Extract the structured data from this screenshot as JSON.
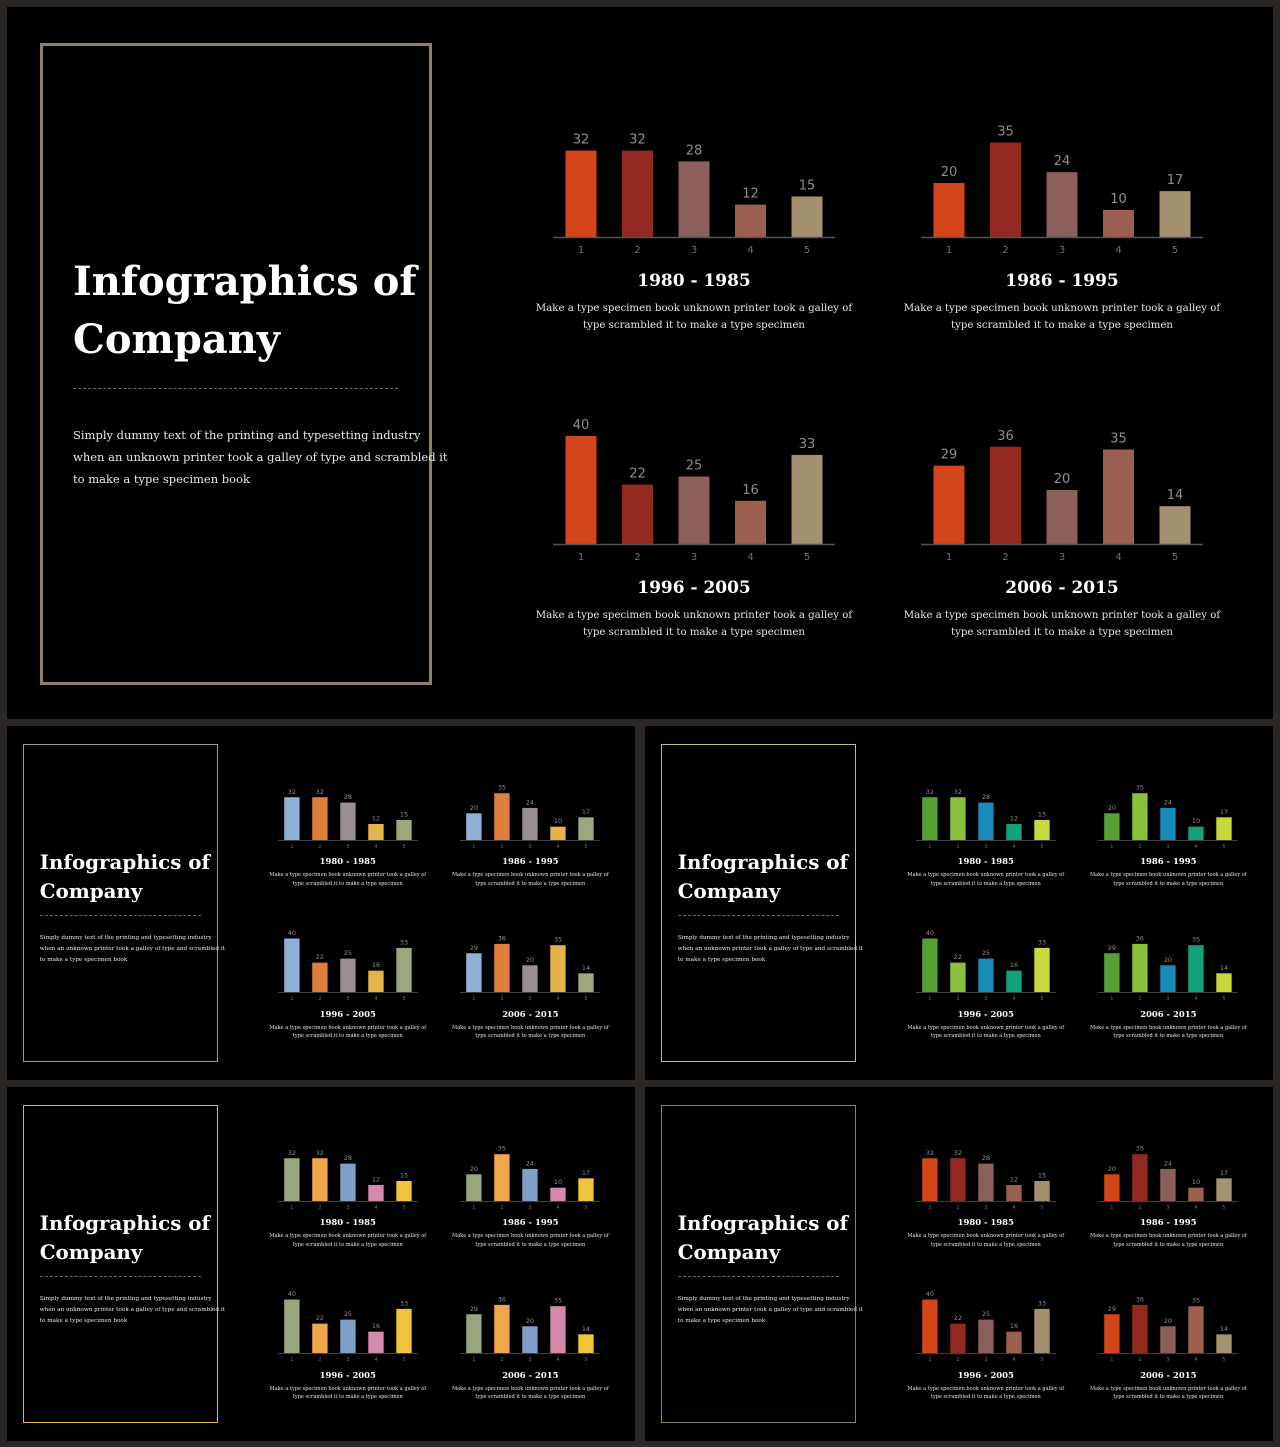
{
  "title_lines": [
    "Infographics of",
    "Company"
  ],
  "description_lines": [
    "Simply dummy  text of the printing and typesetting industry",
    "when an unknown printer took a galley of type and scrambled it",
    "to make a type specimen  book"
  ],
  "chart_data": [
    {
      "type": "bar",
      "title": "1980 - 1985",
      "categories": [
        "1",
        "2",
        "3",
        "4",
        "5"
      ],
      "values": [
        32,
        32,
        28,
        12,
        15
      ],
      "ylim": [
        0,
        40
      ],
      "description_lines": [
        "Make a type specimen book unknown printer took a galley of",
        "type  scrambled it to make a type specimen"
      ]
    },
    {
      "type": "bar",
      "title": "1986 - 1995",
      "categories": [
        "1",
        "2",
        "3",
        "4",
        "5"
      ],
      "values": [
        20,
        35,
        24,
        10,
        17
      ],
      "ylim": [
        0,
        40
      ],
      "description_lines": [
        "Make a type specimen book unknown printer took a galley of",
        "type  scrambled it to make a type specimen"
      ]
    },
    {
      "type": "bar",
      "title": "1996 - 2005",
      "categories": [
        "1",
        "2",
        "3",
        "4",
        "5"
      ],
      "values": [
        40,
        22,
        25,
        16,
        33
      ],
      "ylim": [
        0,
        40
      ],
      "description_lines": [
        "Make a type specimen book unknown printer took a galley of",
        "type  scrambled it to make a type specimen"
      ]
    },
    {
      "type": "bar",
      "title": "2006 - 2015",
      "categories": [
        "1",
        "2",
        "3",
        "4",
        "5"
      ],
      "values": [
        29,
        36,
        20,
        35,
        14
      ],
      "ylim": [
        0,
        40
      ],
      "description_lines": [
        "Make a type specimen book unknown printer took a galley of",
        "type  scrambled it to make a type specimen"
      ]
    }
  ],
  "themes": [
    {
      "name": "brown",
      "frame": "#8c7f6b",
      "bar_colors": [
        [
          "#d24619",
          "#922a22",
          "#8a5f5c",
          "#9b5f4d",
          "#a3906f"
        ],
        [
          "#d24619",
          "#922a22",
          "#8a5f5c",
          "#9b5f4d",
          "#a3906f"
        ],
        [
          "#d24619",
          "#922a22",
          "#8a5f5c",
          "#9b5f4d",
          "#a3906f"
        ],
        [
          "#d24619",
          "#922a22",
          "#8a5f5c",
          "#9b5f4d",
          "#a3906f"
        ]
      ]
    },
    {
      "name": "blue-orange",
      "frame": "#8e9aa3",
      "bar_colors": [
        [
          "#8fb1d6",
          "#e07f3c",
          "#9a9090",
          "#e4b44a",
          "#9ba77c"
        ],
        [
          "#8fb1d6",
          "#e07f3c",
          "#9a9090",
          "#e4b44a",
          "#9ba77c"
        ],
        [
          "#8fb1d6",
          "#e07f3c",
          "#9a9090",
          "#e4b44a",
          "#9ba77c"
        ],
        [
          "#8fb1d6",
          "#e07f3c",
          "#9a9090",
          "#e4b44a",
          "#9ba77c"
        ]
      ]
    },
    {
      "name": "green",
      "frame": "#bfc06a",
      "bar_colors": [
        [
          "#58a033",
          "#8cc03a",
          "#198bb8",
          "#12a27a",
          "#c6d83c"
        ],
        [
          "#58a033",
          "#8cc03a",
          "#198bb8",
          "#12a27a",
          "#c6d83c"
        ],
        [
          "#58a033",
          "#8cc03a",
          "#198bb8",
          "#12a27a",
          "#c6d83c"
        ],
        [
          "#58a033",
          "#8cc03a",
          "#198bb8",
          "#12a27a",
          "#c6d83c"
        ]
      ]
    },
    {
      "name": "pastel",
      "frame": "#e3b54c",
      "bar_colors": [
        [
          "#97a67c",
          "#f0a64a",
          "#7f9ec8",
          "#d58aac",
          "#f0c43a"
        ],
        [
          "#97a67c",
          "#f0a64a",
          "#7f9ec8",
          "#d58aac",
          "#f0c43a"
        ],
        [
          "#97a67c",
          "#f0a64a",
          "#7f9ec8",
          "#d58aac",
          "#f0c43a"
        ],
        [
          "#97a67c",
          "#f0a64a",
          "#7f9ec8",
          "#d58aac",
          "#f0c43a"
        ]
      ]
    },
    {
      "name": "brown-small",
      "frame": "#8c7f6b",
      "bar_colors": [
        [
          "#d24619",
          "#922a22",
          "#8a5f5c",
          "#9b5f4d",
          "#a3906f"
        ],
        [
          "#d24619",
          "#922a22",
          "#8a5f5c",
          "#9b5f4d",
          "#a3906f"
        ],
        [
          "#d24619",
          "#922a22",
          "#8a5f5c",
          "#9b5f4d",
          "#a3906f"
        ],
        [
          "#d24619",
          "#922a22",
          "#8a5f5c",
          "#9b5f4d",
          "#a3906f"
        ]
      ]
    }
  ]
}
